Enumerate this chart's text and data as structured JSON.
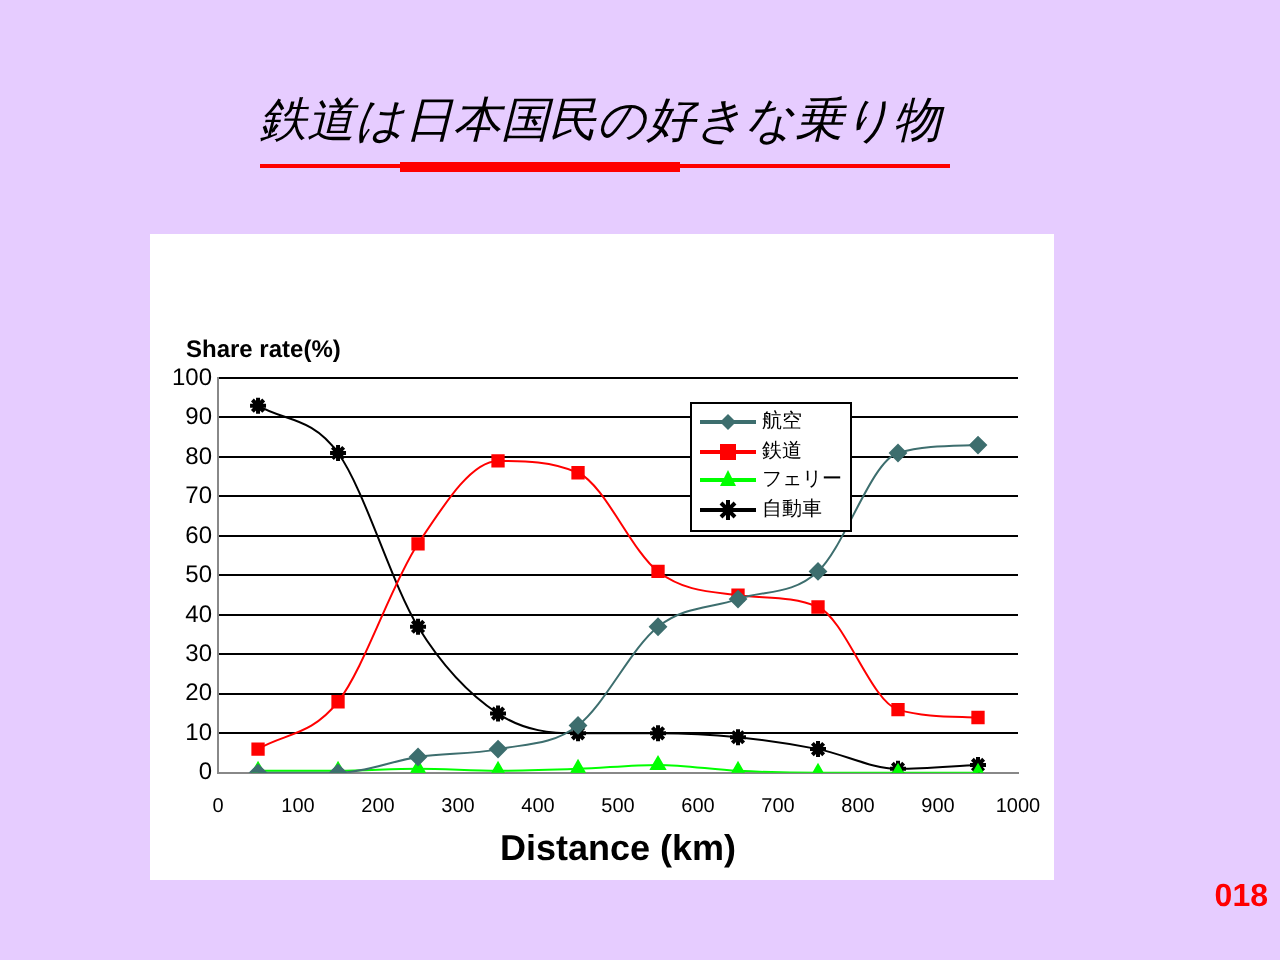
{
  "chart_data": {
    "type": "line",
    "title": "鉄道は日本国民の好きな乗り物",
    "ylabel": "Share rate(%)",
    "xlabel": "Distance (km)",
    "x": [
      50,
      150,
      250,
      350,
      450,
      550,
      650,
      750,
      850,
      950
    ],
    "series": [
      {
        "name": "航空",
        "color": "#3d6e6e",
        "marker": "diamond",
        "values": [
          0,
          0,
          4,
          6,
          12,
          37,
          44,
          51,
          81,
          83
        ]
      },
      {
        "name": "鉄道",
        "color": "#ff0000",
        "marker": "square",
        "values": [
          6,
          18,
          58,
          79,
          76,
          51,
          45,
          42,
          16,
          14
        ]
      },
      {
        "name": "フェリー",
        "color": "#00ff00",
        "marker": "triangle",
        "values": [
          0.5,
          0.5,
          1,
          0.5,
          1,
          2,
          0.5,
          0,
          0,
          0
        ]
      },
      {
        "name": "自動車",
        "color": "#000000",
        "marker": "cross",
        "values": [
          93,
          81,
          37,
          15,
          10,
          10,
          9,
          6,
          1,
          2
        ]
      }
    ],
    "xlim": [
      0,
      1000
    ],
    "xticks": [
      0,
      100,
      200,
      300,
      400,
      500,
      600,
      700,
      800,
      900,
      1000
    ],
    "ylim": [
      0,
      100
    ],
    "yticks": [
      0,
      10,
      20,
      30,
      40,
      50,
      60,
      70,
      80,
      90,
      100
    ],
    "grid": "y",
    "legend": "top",
    "annotations": [
      "018"
    ]
  }
}
